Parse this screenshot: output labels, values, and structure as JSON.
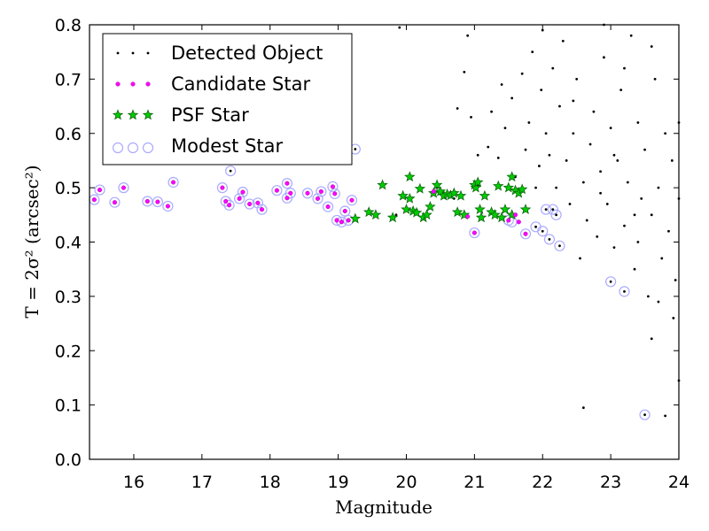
{
  "chart_data": {
    "type": "scatter",
    "xlabel": "Magnitude",
    "ylabel": "T = 2σ² (arcsec²)",
    "xlim": [
      15.35,
      24
    ],
    "ylim": [
      0,
      0.8
    ],
    "x_ticks": [
      "16",
      "17",
      "18",
      "19",
      "20",
      "21",
      "22",
      "23",
      "24"
    ],
    "y_ticks": [
      "0.0",
      "0.1",
      "0.2",
      "0.3",
      "0.4",
      "0.5",
      "0.6",
      "0.7",
      "0.8"
    ],
    "legend_position": "top-left",
    "grid": false,
    "series": [
      {
        "name": "Detected Object",
        "color": "#000000",
        "marker": "dot",
        "points": [
          [
            15.42,
            0.478
          ],
          [
            15.5,
            0.496
          ],
          [
            15.72,
            0.473
          ],
          [
            15.85,
            0.5
          ],
          [
            16.2,
            0.475
          ],
          [
            16.35,
            0.474
          ],
          [
            16.5,
            0.466
          ],
          [
            16.58,
            0.51
          ],
          [
            17.3,
            0.5
          ],
          [
            17.35,
            0.475
          ],
          [
            17.4,
            0.468
          ],
          [
            17.42,
            0.531
          ],
          [
            17.55,
            0.48
          ],
          [
            17.6,
            0.492
          ],
          [
            17.7,
            0.47
          ],
          [
            17.82,
            0.472
          ],
          [
            17.88,
            0.46
          ],
          [
            18.1,
            0.495
          ],
          [
            18.25,
            0.508
          ],
          [
            18.3,
            0.49
          ],
          [
            18.25,
            0.481
          ],
          [
            18.55,
            0.49
          ],
          [
            18.7,
            0.48
          ],
          [
            18.75,
            0.493
          ],
          [
            18.85,
            0.465
          ],
          [
            18.92,
            0.502
          ],
          [
            18.95,
            0.489
          ],
          [
            18.98,
            0.44
          ],
          [
            19.05,
            0.437
          ],
          [
            19.1,
            0.457
          ],
          [
            19.15,
            0.44
          ],
          [
            19.2,
            0.477
          ],
          [
            19.25,
            0.571
          ],
          [
            19.45,
            0.455
          ],
          [
            19.55,
            0.45
          ],
          [
            19.65,
            0.505
          ],
          [
            19.85,
            0.45
          ],
          [
            20.0,
            0.46
          ],
          [
            20.05,
            0.52
          ],
          [
            20.3,
            0.45
          ],
          [
            20.45,
            0.5
          ],
          [
            20.55,
            0.49
          ],
          [
            20.7,
            0.48
          ],
          [
            20.9,
            0.447
          ],
          [
            21.0,
            0.417
          ],
          [
            21.05,
            0.505
          ],
          [
            21.3,
            0.45
          ],
          [
            21.5,
            0.44
          ],
          [
            21.6,
            0.45
          ],
          [
            21.75,
            0.415
          ],
          [
            21.9,
            0.428
          ],
          [
            22.0,
            0.42
          ],
          [
            22.05,
            0.46
          ],
          [
            22.1,
            0.405
          ],
          [
            22.15,
            0.46
          ],
          [
            22.2,
            0.45
          ],
          [
            22.25,
            0.393
          ],
          [
            23.0,
            0.327
          ],
          [
            23.2,
            0.309
          ],
          [
            23.5,
            0.082
          ],
          [
            22.6,
            0.095
          ],
          [
            23.8,
            0.08
          ],
          [
            23.6,
            0.222
          ],
          [
            24.0,
            0.145
          ],
          [
            19.9,
            0.795
          ],
          [
            20.9,
            0.78
          ],
          [
            20.95,
            0.63
          ],
          [
            20.85,
            0.713
          ],
          [
            20.75,
            0.646
          ],
          [
            21.05,
            0.56
          ],
          [
            21.2,
            0.575
          ],
          [
            21.25,
            0.64
          ],
          [
            21.35,
            0.555
          ],
          [
            21.4,
            0.69
          ],
          [
            21.45,
            0.61
          ],
          [
            21.55,
            0.665
          ],
          [
            21.6,
            0.52
          ],
          [
            21.7,
            0.71
          ],
          [
            21.75,
            0.57
          ],
          [
            21.8,
            0.62
          ],
          [
            21.85,
            0.75
          ],
          [
            21.9,
            0.5
          ],
          [
            21.95,
            0.54
          ],
          [
            21.98,
            0.68
          ],
          [
            22.0,
            0.79
          ],
          [
            22.05,
            0.6
          ],
          [
            22.1,
            0.56
          ],
          [
            22.15,
            0.72
          ],
          [
            22.2,
            0.5
          ],
          [
            22.25,
            0.65
          ],
          [
            22.3,
            0.77
          ],
          [
            22.35,
            0.55
          ],
          [
            22.4,
            0.47
          ],
          [
            22.45,
            0.6
          ],
          [
            22.5,
            0.7
          ],
          [
            22.55,
            0.37
          ],
          [
            22.6,
            0.51
          ],
          [
            22.65,
            0.44
          ],
          [
            22.7,
            0.58
          ],
          [
            22.75,
            0.64
          ],
          [
            22.8,
            0.41
          ],
          [
            22.85,
            0.53
          ],
          [
            22.9,
            0.74
          ],
          [
            22.95,
            0.47
          ],
          [
            23.0,
            0.61
          ],
          [
            23.05,
            0.39
          ],
          [
            23.1,
            0.55
          ],
          [
            23.15,
            0.68
          ],
          [
            23.2,
            0.43
          ],
          [
            23.25,
            0.51
          ],
          [
            23.3,
            0.78
          ],
          [
            23.35,
            0.35
          ],
          [
            23.4,
            0.62
          ],
          [
            23.45,
            0.48
          ],
          [
            23.5,
            0.57
          ],
          [
            23.55,
            0.3
          ],
          [
            23.6,
            0.45
          ],
          [
            23.65,
            0.7
          ],
          [
            23.7,
            0.5
          ],
          [
            23.75,
            0.37
          ],
          [
            23.8,
            0.6
          ],
          [
            23.85,
            0.42
          ],
          [
            23.9,
            0.55
          ],
          [
            23.95,
            0.33
          ],
          [
            24.0,
            0.48
          ],
          [
            23.92,
            0.26
          ],
          [
            23.7,
            0.29
          ],
          [
            23.4,
            0.4
          ],
          [
            22.9,
            0.8
          ],
          [
            23.6,
            0.76
          ],
          [
            24.0,
            0.62
          ],
          [
            23.2,
            0.72
          ],
          [
            22.45,
            0.66
          ],
          [
            22.85,
            0.49
          ],
          [
            23.05,
            0.56
          ],
          [
            23.35,
            0.45
          ]
        ]
      },
      {
        "name": "Candidate Star",
        "color": "#ff00ff",
        "marker": "dot",
        "points": [
          [
            15.42,
            0.478
          ],
          [
            15.5,
            0.496
          ],
          [
            15.72,
            0.473
          ],
          [
            15.85,
            0.5
          ],
          [
            16.2,
            0.475
          ],
          [
            16.35,
            0.474
          ],
          [
            16.5,
            0.466
          ],
          [
            16.58,
            0.51
          ],
          [
            17.3,
            0.5
          ],
          [
            17.35,
            0.475
          ],
          [
            17.4,
            0.468
          ],
          [
            17.55,
            0.48
          ],
          [
            17.6,
            0.492
          ],
          [
            17.7,
            0.47
          ],
          [
            17.82,
            0.472
          ],
          [
            17.88,
            0.46
          ],
          [
            18.1,
            0.495
          ],
          [
            18.25,
            0.508
          ],
          [
            18.3,
            0.49
          ],
          [
            18.25,
            0.481
          ],
          [
            18.55,
            0.49
          ],
          [
            18.7,
            0.48
          ],
          [
            18.75,
            0.493
          ],
          [
            18.85,
            0.465
          ],
          [
            18.92,
            0.502
          ],
          [
            18.95,
            0.489
          ],
          [
            18.98,
            0.44
          ],
          [
            19.05,
            0.437
          ],
          [
            19.1,
            0.457
          ],
          [
            19.15,
            0.44
          ],
          [
            19.2,
            0.477
          ],
          [
            20.4,
            0.493
          ],
          [
            20.9,
            0.447
          ],
          [
            21.0,
            0.417
          ],
          [
            21.5,
            0.44
          ],
          [
            21.6,
            0.45
          ],
          [
            21.65,
            0.437
          ],
          [
            21.75,
            0.415
          ]
        ]
      },
      {
        "name": "PSF Star",
        "color": "#00cc00",
        "marker": "star",
        "points": [
          [
            19.25,
            0.443
          ],
          [
            19.45,
            0.455
          ],
          [
            19.55,
            0.45
          ],
          [
            19.65,
            0.505
          ],
          [
            19.8,
            0.445
          ],
          [
            19.95,
            0.485
          ],
          [
            20.0,
            0.46
          ],
          [
            20.05,
            0.52
          ],
          [
            20.05,
            0.48
          ],
          [
            20.1,
            0.457
          ],
          [
            20.15,
            0.454
          ],
          [
            20.2,
            0.498
          ],
          [
            20.25,
            0.445
          ],
          [
            20.3,
            0.45
          ],
          [
            20.35,
            0.465
          ],
          [
            20.4,
            0.49
          ],
          [
            20.45,
            0.505
          ],
          [
            20.5,
            0.493
          ],
          [
            20.55,
            0.485
          ],
          [
            20.6,
            0.488
          ],
          [
            20.65,
            0.486
          ],
          [
            20.7,
            0.49
          ],
          [
            20.75,
            0.455
          ],
          [
            20.8,
            0.485
          ],
          [
            20.85,
            0.45
          ],
          [
            21.0,
            0.505
          ],
          [
            21.02,
            0.5
          ],
          [
            21.05,
            0.51
          ],
          [
            21.08,
            0.46
          ],
          [
            21.1,
            0.445
          ],
          [
            21.15,
            0.485
          ],
          [
            21.25,
            0.455
          ],
          [
            21.3,
            0.45
          ],
          [
            21.35,
            0.503
          ],
          [
            21.4,
            0.445
          ],
          [
            21.45,
            0.46
          ],
          [
            21.5,
            0.5
          ],
          [
            21.55,
            0.52
          ],
          [
            21.55,
            0.45
          ],
          [
            21.6,
            0.495
          ],
          [
            21.65,
            0.49
          ],
          [
            21.7,
            0.497
          ],
          [
            21.75,
            0.46
          ]
        ]
      },
      {
        "name": "Modest Star",
        "color": "#aaaaff",
        "marker": "circle",
        "points": [
          [
            15.42,
            0.478
          ],
          [
            15.5,
            0.496
          ],
          [
            15.72,
            0.473
          ],
          [
            15.85,
            0.5
          ],
          [
            16.2,
            0.475
          ],
          [
            16.35,
            0.474
          ],
          [
            16.5,
            0.466
          ],
          [
            16.58,
            0.51
          ],
          [
            17.3,
            0.5
          ],
          [
            17.35,
            0.475
          ],
          [
            17.4,
            0.468
          ],
          [
            17.42,
            0.531
          ],
          [
            17.55,
            0.48
          ],
          [
            17.6,
            0.492
          ],
          [
            17.7,
            0.47
          ],
          [
            17.82,
            0.472
          ],
          [
            17.88,
            0.46
          ],
          [
            18.1,
            0.495
          ],
          [
            18.25,
            0.508
          ],
          [
            18.3,
            0.49
          ],
          [
            18.25,
            0.481
          ],
          [
            18.55,
            0.49
          ],
          [
            18.7,
            0.48
          ],
          [
            18.75,
            0.493
          ],
          [
            18.85,
            0.465
          ],
          [
            18.92,
            0.502
          ],
          [
            18.95,
            0.489
          ],
          [
            18.98,
            0.44
          ],
          [
            19.05,
            0.437
          ],
          [
            19.1,
            0.457
          ],
          [
            19.15,
            0.44
          ],
          [
            19.2,
            0.477
          ],
          [
            19.25,
            0.571
          ],
          [
            21.0,
            0.417
          ],
          [
            21.5,
            0.44
          ],
          [
            21.55,
            0.437
          ],
          [
            21.75,
            0.415
          ],
          [
            21.9,
            0.428
          ],
          [
            22.0,
            0.42
          ],
          [
            22.05,
            0.46
          ],
          [
            22.1,
            0.405
          ],
          [
            22.15,
            0.46
          ],
          [
            22.2,
            0.45
          ],
          [
            22.25,
            0.393
          ],
          [
            23.0,
            0.327
          ],
          [
            23.2,
            0.309
          ],
          [
            23.5,
            0.082
          ]
        ]
      }
    ]
  }
}
